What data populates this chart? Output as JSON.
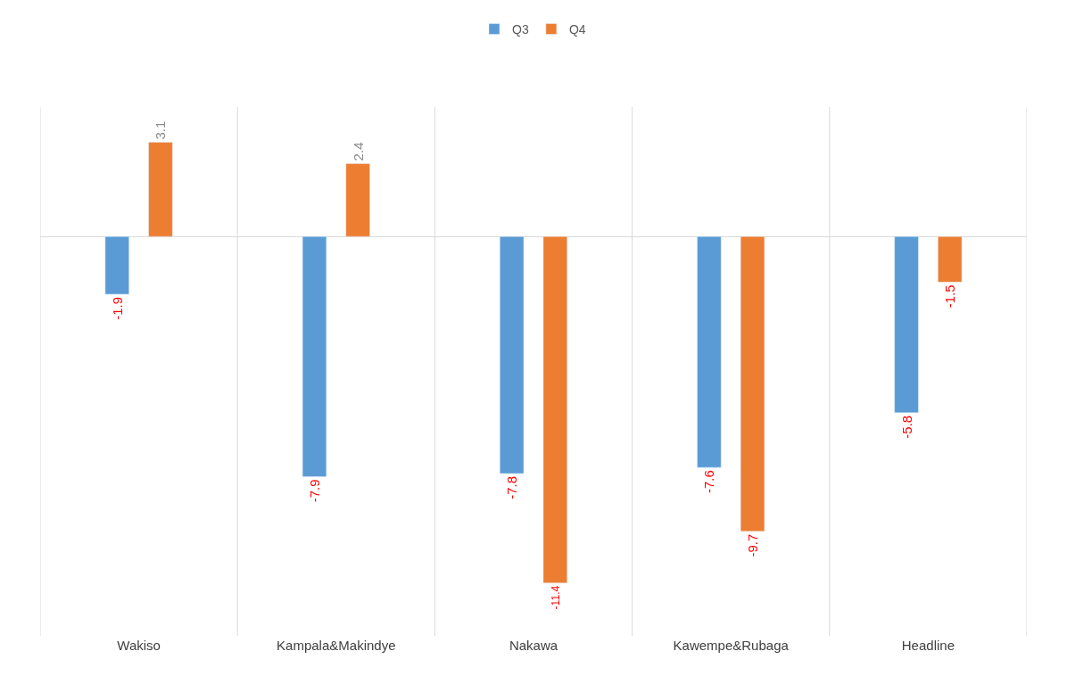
{
  "chart_data": {
    "type": "bar",
    "categories": [
      "Wakiso",
      "Kampala&Makindye",
      "Nakawa",
      "Kawempe&Rubaga",
      "Headline"
    ],
    "series": [
      {
        "name": "Q3",
        "color": "#5b9bd5",
        "values": [
          -1.9,
          -7.9,
          -7.8,
          -7.6,
          -5.8
        ]
      },
      {
        "name": "Q4",
        "color": "#ed7d31",
        "values": [
          3.1,
          2.4,
          -11.4,
          -9.7,
          -1.5
        ]
      }
    ],
    "data_labels": true,
    "grid": "x",
    "legend": "top",
    "tick_labels": "x"
  }
}
